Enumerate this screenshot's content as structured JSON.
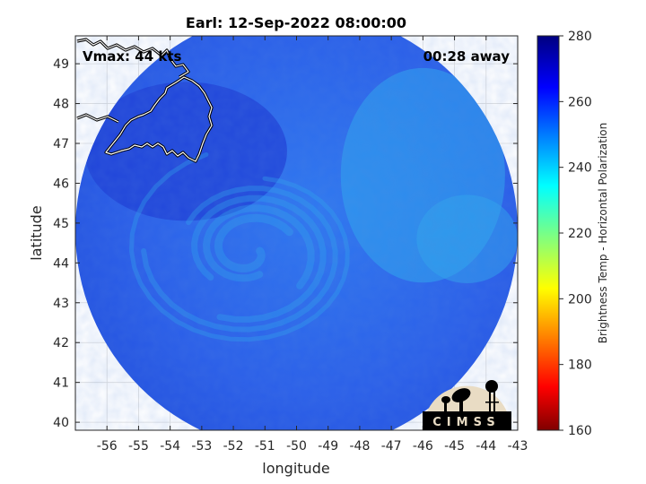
{
  "chart_data": {
    "type": "heatmap",
    "title": "Earl: 12-Sep-2022 08:00:00",
    "xlabel": "longitude",
    "ylabel": "latitude",
    "xlim": [
      -57,
      -43
    ],
    "ylim": [
      39.8,
      49.7
    ],
    "xticks": [
      -56,
      -55,
      -54,
      -53,
      -52,
      -51,
      -50,
      -49,
      -48,
      -47,
      -46,
      -45,
      -44,
      -43
    ],
    "yticks": [
      40,
      41,
      42,
      43,
      44,
      45,
      46,
      47,
      48,
      49
    ],
    "grid": true,
    "annotations": {
      "vmax": "Vmax: 44 kts",
      "time_offset": "00:28 away"
    },
    "colorbar": {
      "label": "Brightness Temp - Horizontal Polarization",
      "range": [
        160,
        280
      ],
      "ticks": [
        160,
        180,
        200,
        220,
        240,
        260,
        280
      ],
      "colormap": "jet"
    },
    "swath": {
      "center_lon": -50,
      "center_lat": 44.8,
      "radius_deg": 7
    },
    "storm_center": {
      "lon": -51.5,
      "lat": 44.3
    },
    "logo_text": "CIMSS"
  },
  "colors": {
    "background": "#ffffff",
    "swath_base": "#2d63ec",
    "swath_dark": "#1f3fd6",
    "swath_light": "#2fa8ee",
    "coastline": "#ffffff",
    "grid": "#dcdcdc"
  }
}
